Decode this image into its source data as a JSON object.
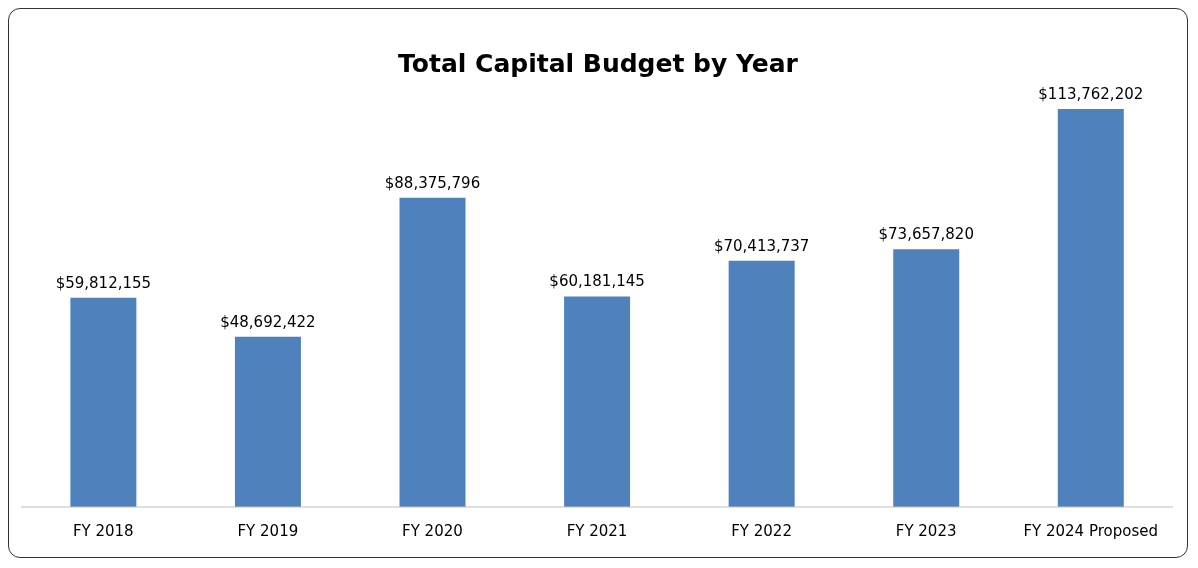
{
  "chart_data": {
    "type": "bar",
    "title": "Total Capital Budget by Year",
    "categories": [
      "FY 2018",
      "FY 2019",
      "FY 2020",
      "FY 2021",
      "FY 2022",
      "FY 2023",
      "FY 2024 Proposed"
    ],
    "values": [
      59812155,
      48692422,
      88375796,
      60181145,
      70413737,
      73657820,
      113762202
    ],
    "value_labels": [
      "$59,812,155",
      "$48,692,422",
      "$88,375,796",
      "$60,181,145",
      "$70,413,737",
      "$73,657,820",
      "$113,762,202"
    ],
    "color": "#4f81bd",
    "grid": false
  }
}
